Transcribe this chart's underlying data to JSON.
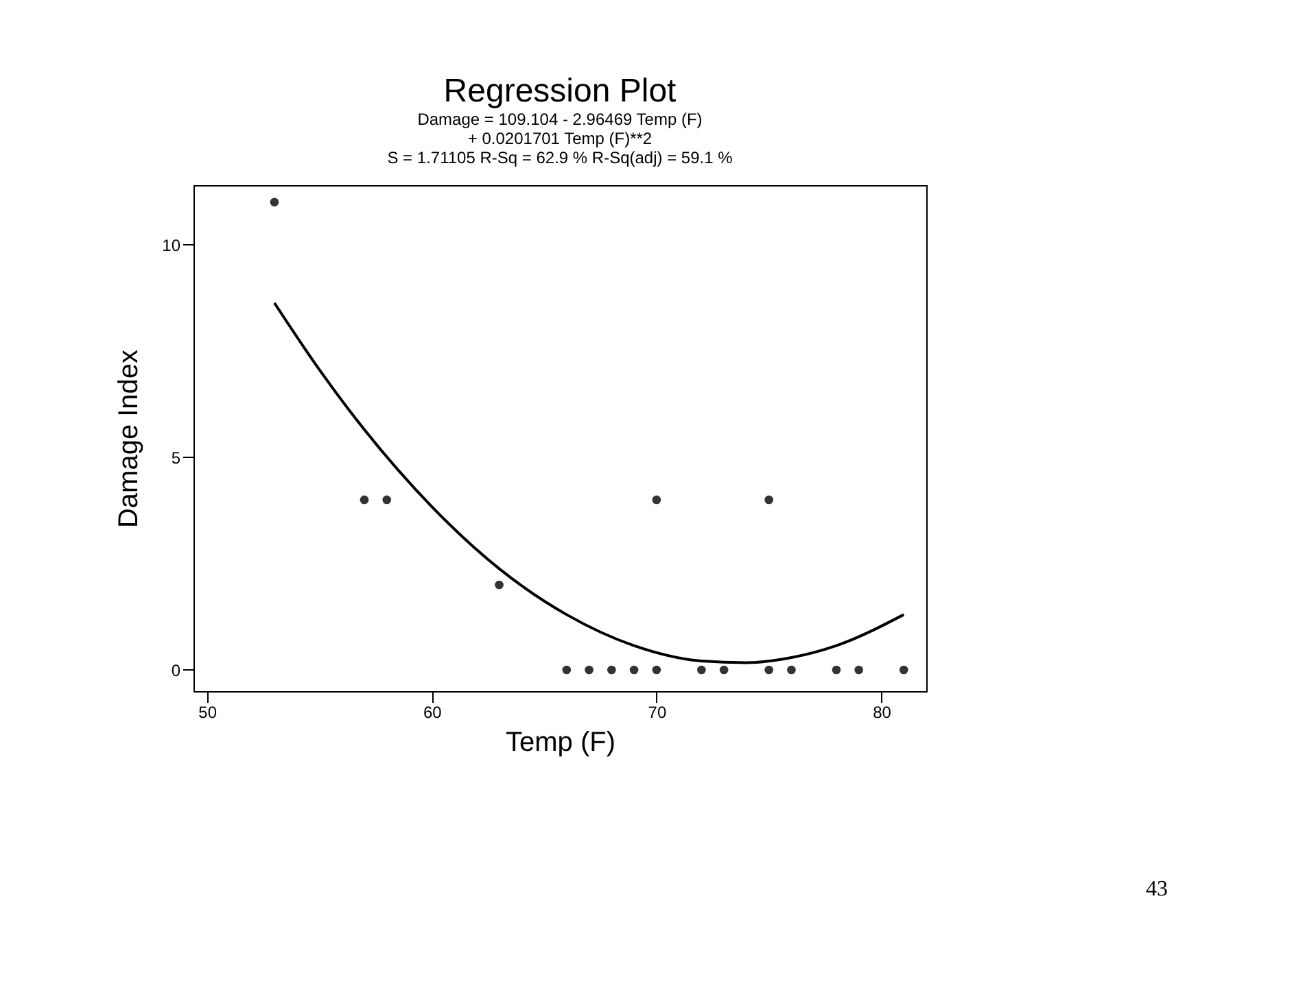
{
  "chart_data": {
    "type": "scatter",
    "title": "Regression Plot",
    "subtitle": "Damage = 109.104 - 2.96469 Temp (F)\n+ 0.0201701 Temp (F)**2\nS = 1.71105     R-Sq = 62.9 %     R-Sq(adj) = 59.1 %",
    "xlabel": "Temp (F)",
    "ylabel": "Damage Index",
    "annotations": [
      "43"
    ],
    "series": [
      {
        "color": "#333333",
        "marker": "circle",
        "x": [
          53,
          57,
          58,
          63,
          66,
          67,
          68,
          69,
          70,
          70,
          72,
          73,
          75,
          75,
          76,
          78,
          79,
          81
        ],
        "values": [
          11,
          4,
          4,
          2,
          0,
          0,
          0,
          0,
          0,
          4,
          0,
          0,
          0,
          4,
          0,
          0,
          0,
          0
        ]
      },
      {
        "type": "line",
        "color": "#000000",
        "x": [
          53,
          55,
          57,
          60,
          63,
          66,
          69,
          72,
          74,
          76,
          78,
          81
        ],
        "values": [
          8.63,
          7.06,
          5.65,
          3.84,
          2.38,
          1.3,
          0.57,
          0.21,
          0.17,
          0.29,
          0.57,
          1.3
        ]
      }
    ],
    "xlim": [
      49.4,
      82
    ],
    "xticks": [
      50,
      60,
      70,
      80
    ],
    "ylim": [
      -0.5,
      11.4
    ],
    "yticks": [
      0,
      5,
      10
    ],
    "grid": false
  }
}
